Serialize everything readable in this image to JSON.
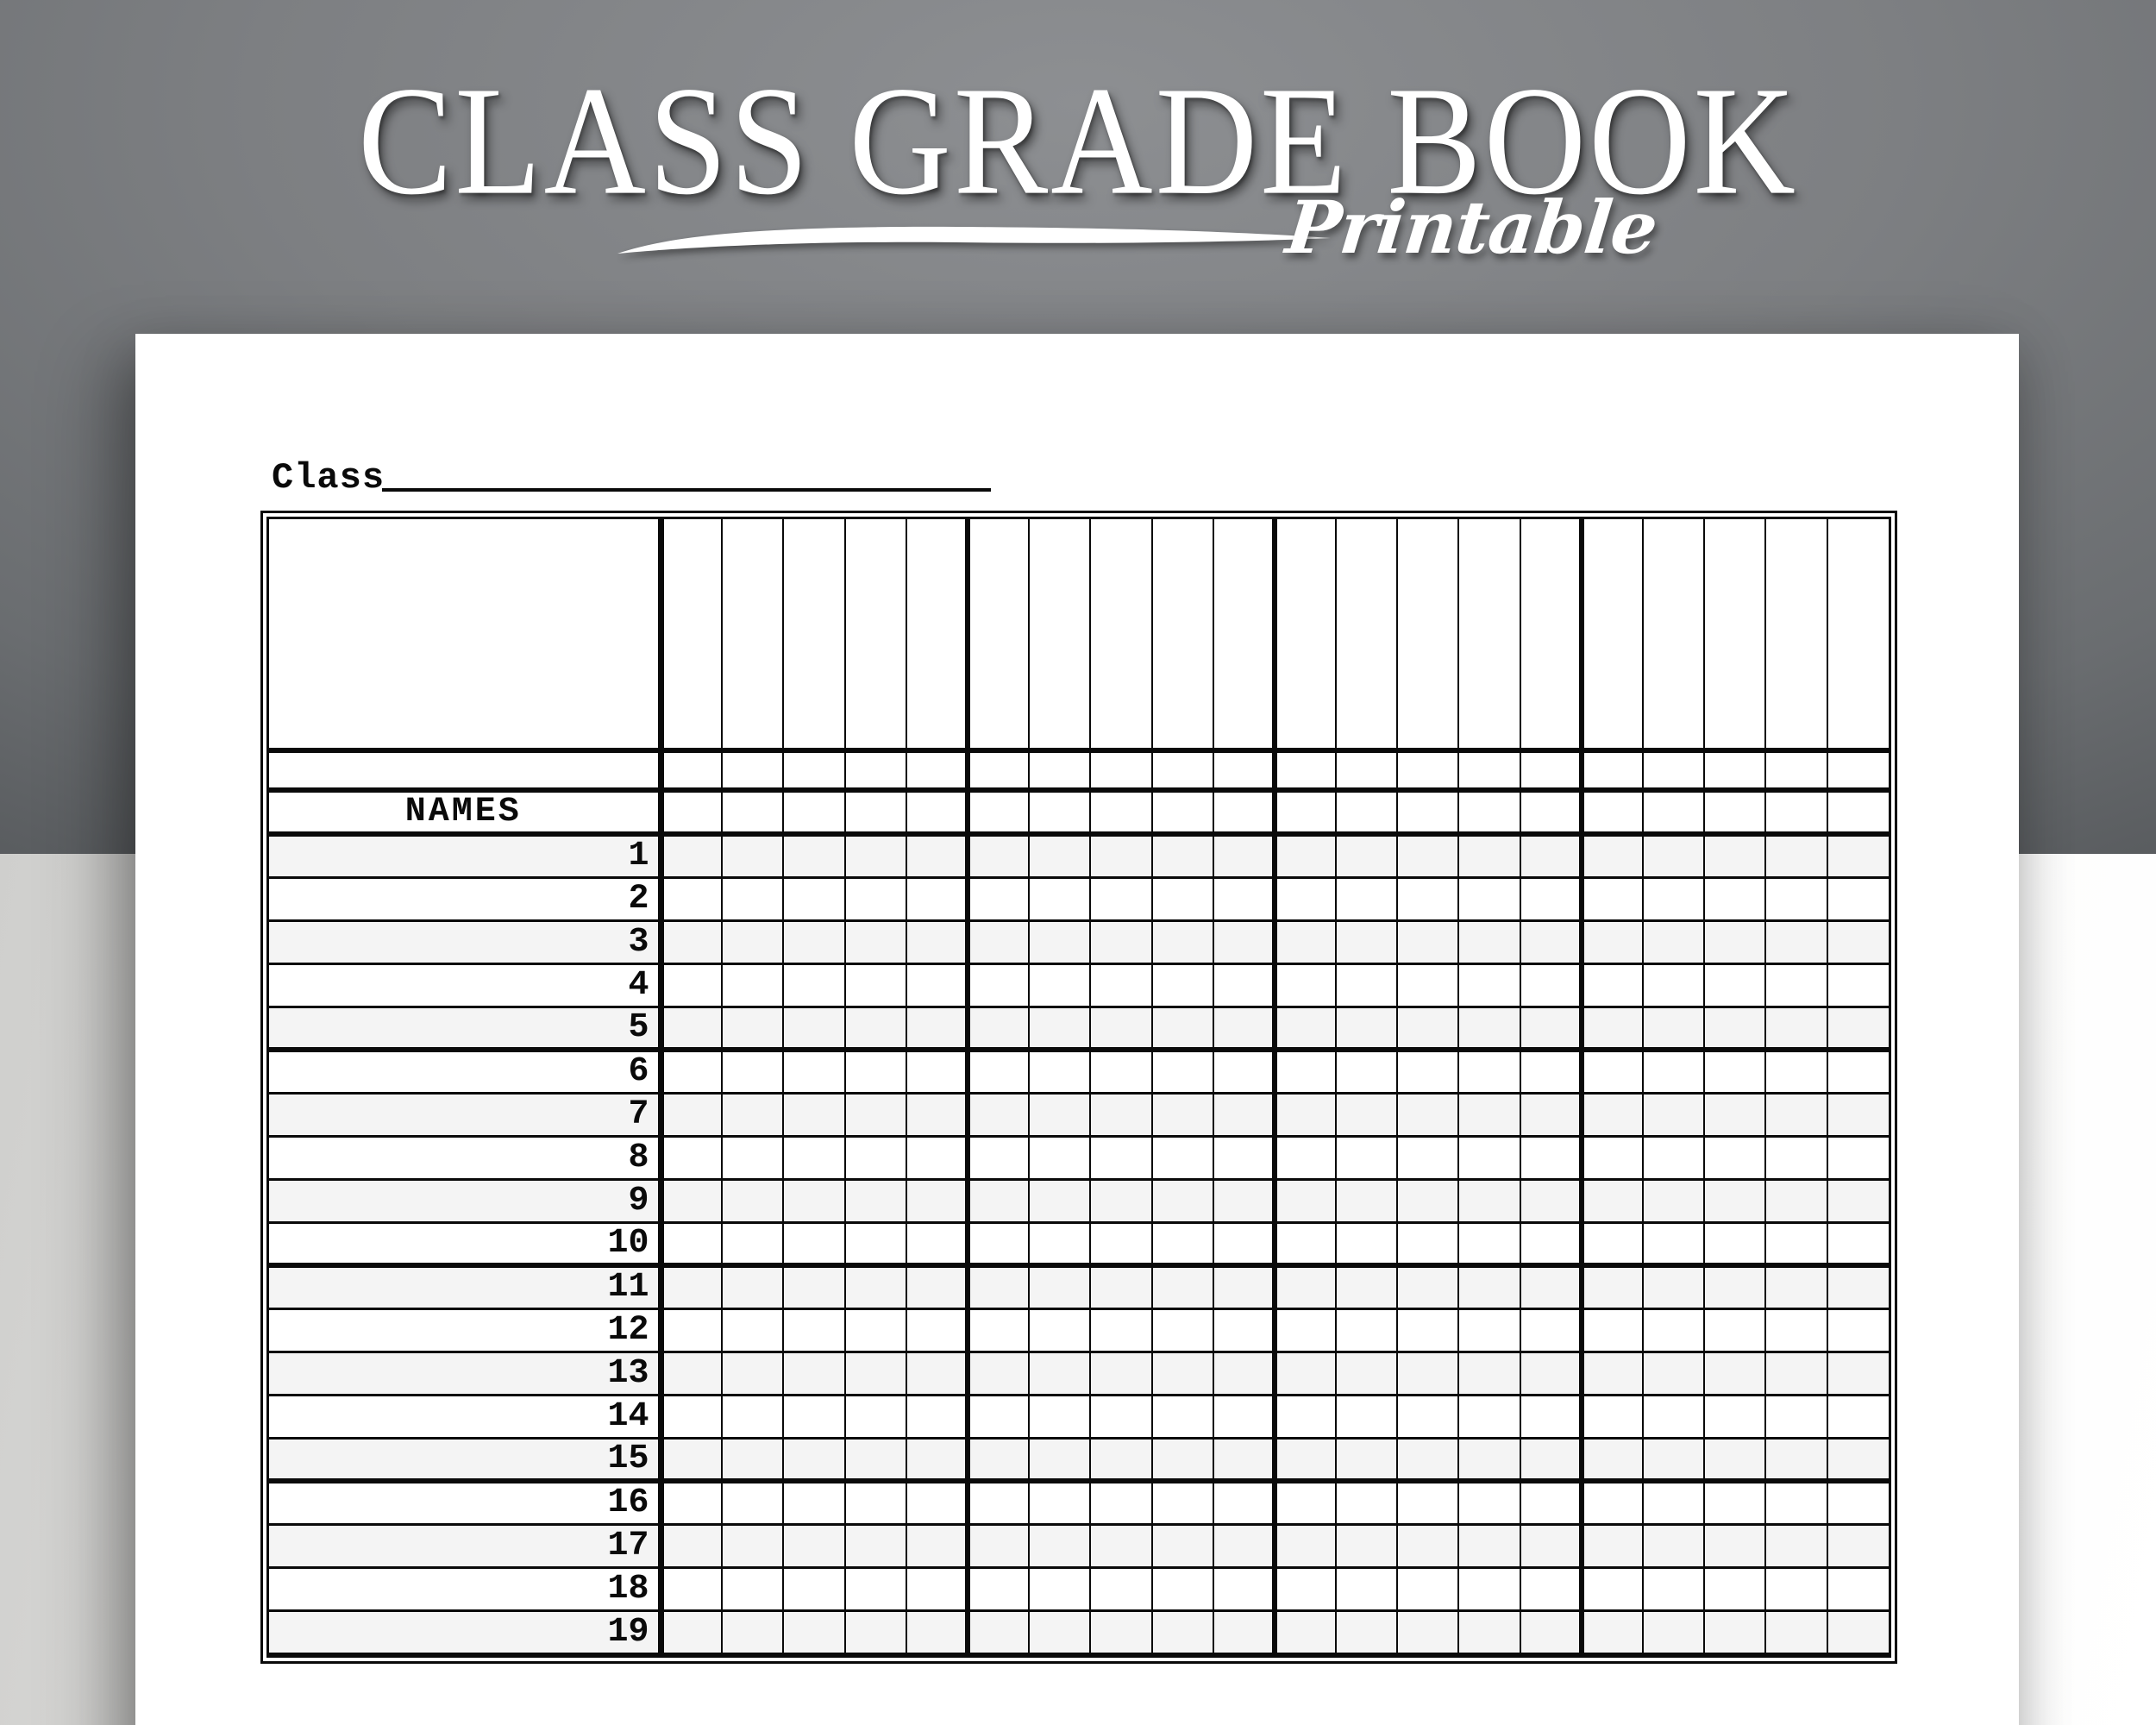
{
  "header": {
    "title": "CLASS GRADE BOOK",
    "subtitle": "Printable"
  },
  "sheet": {
    "class_label": "Class",
    "names_header": "NAMES",
    "rows": [
      "1",
      "2",
      "3",
      "4",
      "5",
      "6",
      "7",
      "8",
      "9",
      "10",
      "11",
      "12",
      "13",
      "14",
      "15",
      "16",
      "17",
      "18",
      "19"
    ],
    "grade_columns": 20,
    "column_group_size": 5,
    "row_group_size": 5
  },
  "colors": {
    "wall": "#6f7174",
    "surface_left": "#cfcfcd",
    "surface_right": "#fbfbfa",
    "paper": "#ffffff",
    "ink": "#0a0a0a",
    "row_shade": "#f4f4f4",
    "title_text": "#ffffff"
  }
}
